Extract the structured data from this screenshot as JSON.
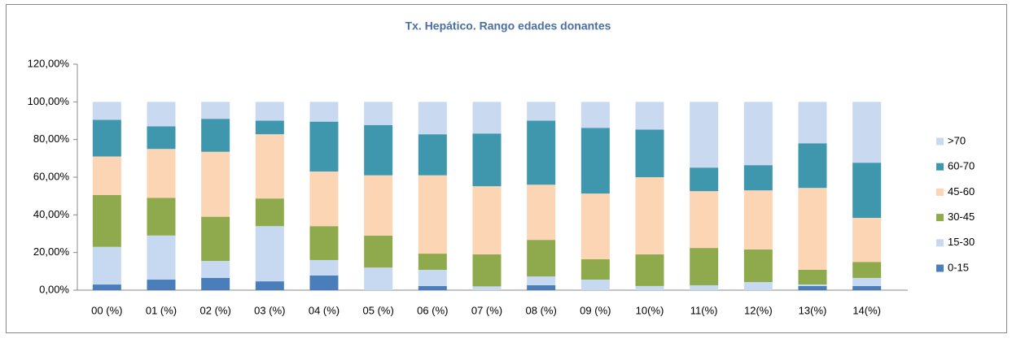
{
  "chart_data": {
    "type": "stacked_bar",
    "title": "Tx. Hepático. Rango edades donantes",
    "categories": [
      "00 (%)",
      "01 (%)",
      "02 (%)",
      "03 (%)",
      "04 (%)",
      "05 (%)",
      "06 (%)",
      "07 (%)",
      "08 (%)",
      "09 (%)",
      "10(%)",
      "11(%)",
      "12(%)",
      "13(%)",
      "14(%)"
    ],
    "series": [
      {
        "name": "0-15",
        "color": "#4a7ebb",
        "values": [
          3,
          5.6,
          6.5,
          4.7,
          7.8,
          0,
          2.2,
          0,
          2.6,
          0,
          0,
          0,
          0,
          2.2,
          2.2
        ]
      },
      {
        "name": "15-30",
        "color": "#c6d9f1",
        "values": [
          20,
          23.4,
          9,
          29.3,
          8.2,
          12,
          8.6,
          2,
          4.7,
          5.6,
          2.2,
          2.6,
          4.3,
          0.8,
          4.3
        ]
      },
      {
        "name": "30-45",
        "color": "#8faa4c",
        "values": [
          27.5,
          20,
          23.5,
          14.7,
          18,
          17,
          8.6,
          17,
          19.4,
          10.8,
          16.8,
          19.8,
          17.3,
          7.8,
          8.5
        ]
      },
      {
        "name": "45-60",
        "color": "#fcd5b5",
        "values": [
          20.5,
          26,
          34.5,
          34.1,
          29,
          32,
          41.6,
          36.2,
          29.3,
          34.9,
          41,
          30.2,
          31.4,
          43.5,
          23.4
        ]
      },
      {
        "name": "60-70",
        "color": "#3e97ad",
        "values": [
          19.5,
          12,
          17.5,
          7.2,
          26.5,
          26.7,
          21.8,
          28,
          34,
          34.9,
          25.3,
          12.5,
          13.4,
          23.7,
          29.3
        ]
      },
      {
        "name": ">70",
        "color": "#c9d9ef",
        "values": [
          9.5,
          13,
          9,
          10,
          10.5,
          12.3,
          17.2,
          16.8,
          10,
          13.8,
          14.7,
          34.9,
          33.6,
          22,
          32.3
        ]
      }
    ],
    "ylim": [
      0,
      120
    ],
    "yticks": [
      {
        "value": 0,
        "label": "0,00%"
      },
      {
        "value": 20,
        "label": "20,00%"
      },
      {
        "value": 40,
        "label": "40,00%"
      },
      {
        "value": 60,
        "label": "60,00%"
      },
      {
        "value": 80,
        "label": "80,00%"
      },
      {
        "value": 100,
        "label": "100,00%"
      },
      {
        "value": 120,
        "label": "120,00%"
      }
    ],
    "grid": false,
    "legend": "right"
  }
}
